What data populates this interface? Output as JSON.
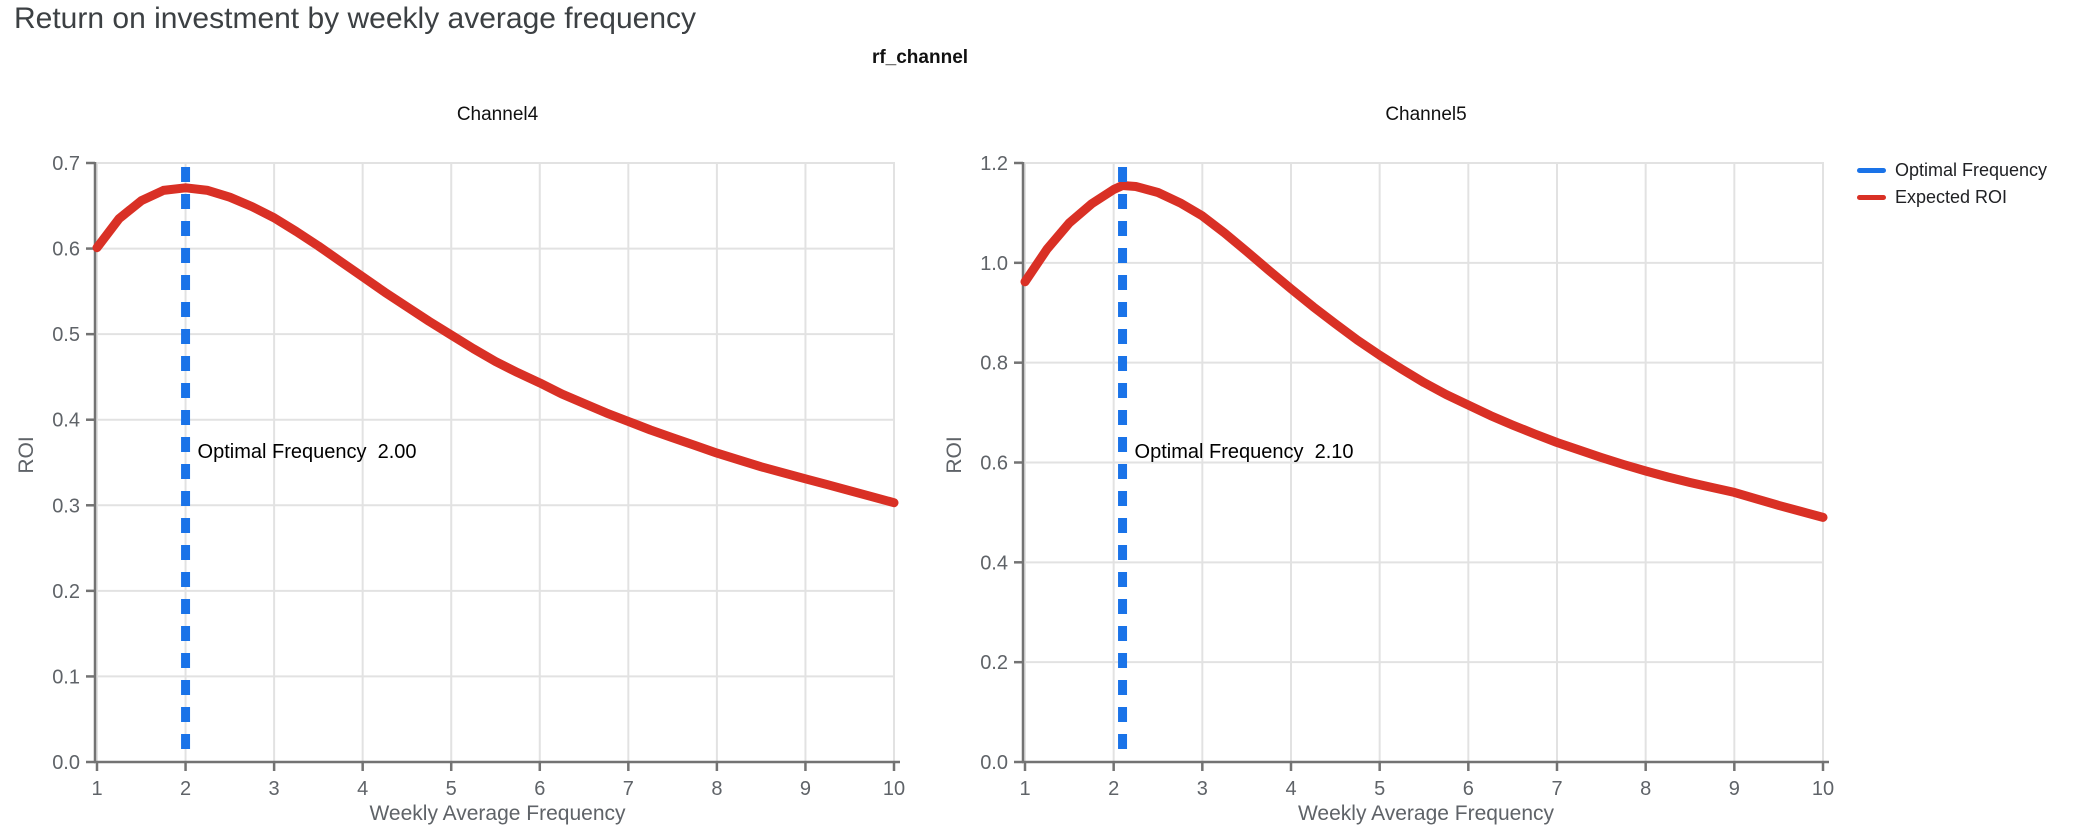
{
  "page_title": "Return on investment by weekly average frequency",
  "figure": {
    "suptitle": "rf_channel",
    "legend": {
      "items": [
        {
          "label": "Optimal Frequency",
          "color": "#1a73e8"
        },
        {
          "label": "Expected ROI",
          "color": "#d93025"
        }
      ]
    }
  },
  "colors": {
    "title_text": "#3c4043",
    "axis_text": "#5f6368",
    "grid": "#e2e2e2",
    "spine": "#737373",
    "optimal_frequency_blue": "#1a73e8",
    "expected_roi_red": "#d93025"
  },
  "chart_data": [
    {
      "type": "line",
      "title": "Channel4",
      "xlabel": "Weekly Average Frequency",
      "ylabel": "ROI",
      "xlim": [
        1,
        10
      ],
      "ylim": [
        0,
        0.7
      ],
      "grid": true,
      "xticks": [
        1,
        2,
        3,
        4,
        5,
        6,
        7,
        8,
        9,
        10
      ],
      "xtick_labels": [
        "1",
        "2",
        "3",
        "4",
        "5",
        "6",
        "7",
        "8",
        "9",
        "10"
      ],
      "ytick_values": [
        0,
        0.1,
        0.2,
        0.3,
        0.4,
        0.5,
        0.6,
        0.7
      ],
      "ytick_labels": [
        "0.0",
        "0.1",
        "0.2",
        "0.3",
        "0.4",
        "0.5",
        "0.6",
        "0.7"
      ],
      "optimal_frequency": 2.0,
      "annotation": {
        "label": "Optimal Frequency",
        "value": "2.00"
      },
      "series": [
        {
          "name": "Expected ROI",
          "color": "#d93025",
          "x": [
            1,
            1.25,
            1.5,
            1.75,
            2,
            2.25,
            2.5,
            2.75,
            3,
            3.25,
            3.5,
            3.75,
            4,
            4.25,
            4.5,
            4.75,
            5,
            5.25,
            5.5,
            5.75,
            6,
            6.25,
            6.5,
            6.75,
            7,
            7.25,
            7.5,
            7.75,
            8,
            8.25,
            8.5,
            8.75,
            9,
            9.25,
            9.5,
            9.75,
            10
          ],
          "y": [
            0.601,
            0.635,
            0.656,
            0.668,
            0.671,
            0.668,
            0.66,
            0.649,
            0.636,
            0.62,
            0.603,
            0.585,
            0.567,
            0.549,
            0.532,
            0.515,
            0.499,
            0.483,
            0.468,
            0.455,
            0.443,
            0.43,
            0.419,
            0.408,
            0.398,
            0.388,
            0.379,
            0.37,
            0.361,
            0.353,
            0.345,
            0.338,
            0.331,
            0.324,
            0.317,
            0.31,
            0.303
          ]
        }
      ]
    },
    {
      "type": "line",
      "title": "Channel5",
      "xlabel": "Weekly Average Frequency",
      "ylabel": "ROI",
      "xlim": [
        1,
        10
      ],
      "ylim": [
        0,
        1.2
      ],
      "grid": true,
      "xticks": [
        1,
        2,
        3,
        4,
        5,
        6,
        7,
        8,
        9,
        10
      ],
      "xtick_labels": [
        "1",
        "2",
        "3",
        "4",
        "5",
        "6",
        "7",
        "8",
        "9",
        "10"
      ],
      "ytick_values": [
        0,
        0.2,
        0.4,
        0.6,
        0.8,
        1.0,
        1.2
      ],
      "ytick_labels": [
        "0.0",
        "0.2",
        "0.4",
        "0.6",
        "0.8",
        "1.0",
        "1.2"
      ],
      "optimal_frequency": 2.1,
      "annotation": {
        "label": "Optimal Frequency",
        "value": "2.10"
      },
      "series": [
        {
          "name": "Expected ROI",
          "color": "#d93025",
          "x": [
            1,
            1.25,
            1.5,
            1.75,
            2,
            2.1,
            2.25,
            2.5,
            2.75,
            3,
            3.25,
            3.5,
            3.75,
            4,
            4.25,
            4.5,
            4.75,
            5,
            5.25,
            5.5,
            5.75,
            6,
            6.25,
            6.5,
            6.75,
            7,
            7.25,
            7.5,
            7.75,
            8,
            8.25,
            8.5,
            8.75,
            9,
            9.25,
            9.5,
            9.75,
            10
          ],
          "y": [
            0.962,
            1.028,
            1.08,
            1.118,
            1.147,
            1.155,
            1.153,
            1.141,
            1.12,
            1.094,
            1.06,
            1.023,
            0.985,
            0.948,
            0.912,
            0.878,
            0.845,
            0.815,
            0.787,
            0.76,
            0.736,
            0.715,
            0.694,
            0.675,
            0.657,
            0.64,
            0.625,
            0.61,
            0.596,
            0.583,
            0.571,
            0.56,
            0.55,
            0.54,
            0.527,
            0.514,
            0.502,
            0.49
          ]
        }
      ]
    }
  ]
}
